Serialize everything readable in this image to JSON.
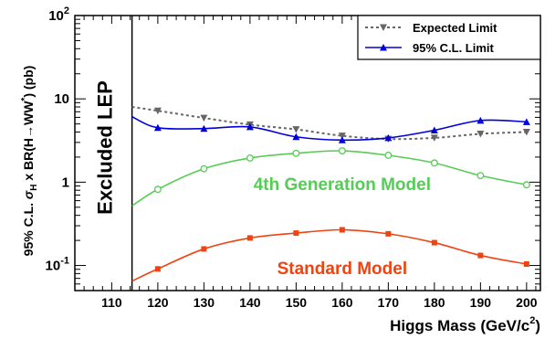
{
  "chart_data": {
    "type": "line",
    "xlabel": "Higgs Mass (GeV/c",
    "xlabel_sup": "2",
    "xlabel_close": ")",
    "ylabel_prefix": "95% C.L. ",
    "ylabel_sigma": "σ",
    "ylabel_sub": "H",
    "ylabel_mid": " x BR(H→WW",
    "ylabel_sup": "*",
    "ylabel_suffix": ") (pb)",
    "xlim": [
      102,
      203
    ],
    "ylim": [
      0.05,
      100
    ],
    "yscale": "log",
    "x_ticks": [
      110,
      120,
      130,
      140,
      150,
      160,
      170,
      180,
      190,
      200
    ],
    "x_tick_labels": [
      "110",
      "120",
      "130",
      "140",
      "150",
      "160",
      "170",
      "180",
      "190",
      "200"
    ],
    "y_tick_labels": [
      {
        "value": 100,
        "base": "10",
        "exp": "2"
      },
      {
        "value": 10,
        "base": "10",
        "exp": ""
      },
      {
        "value": 1,
        "base": "1",
        "exp": ""
      },
      {
        "value": 0.1,
        "base": "10",
        "exp": "-1"
      }
    ],
    "excluded_region": {
      "x_max": 114.4,
      "label": "Excluded LEP"
    },
    "legend": {
      "position": "top-right"
    },
    "series": [
      {
        "name": "Expected Limit",
        "color": "#666666",
        "dash": "dotted",
        "marker": "triangle-down",
        "x": [
          114.4,
          120,
          130,
          140,
          150,
          160,
          170,
          180,
          190,
          200
        ],
        "y": [
          8.0,
          7.2,
          5.9,
          4.9,
          4.3,
          3.6,
          3.3,
          3.4,
          3.8,
          4.0
        ],
        "marker_x": [
          120,
          130,
          140,
          150,
          160,
          170,
          180,
          190,
          200
        ]
      },
      {
        "name": "95% C.L. Limit",
        "color": "#0000dd",
        "dash": "solid",
        "marker": "triangle-up",
        "x": [
          114.4,
          120,
          130,
          140,
          150,
          160,
          170,
          180,
          190,
          200
        ],
        "y": [
          6.1,
          4.5,
          4.4,
          4.6,
          3.5,
          3.2,
          3.4,
          4.2,
          5.5,
          5.3
        ],
        "marker_x": [
          120,
          130,
          140,
          150,
          160,
          170,
          180,
          190,
          200
        ]
      },
      {
        "name": "",
        "model_label": "4th Generation Model",
        "color": "#55cc55",
        "dash": "solid",
        "marker": "open-circle",
        "x": [
          114.4,
          120,
          130,
          140,
          150,
          160,
          170,
          180,
          190,
          200
        ],
        "y": [
          0.52,
          0.82,
          1.45,
          1.95,
          2.22,
          2.38,
          2.1,
          1.7,
          1.2,
          0.93
        ],
        "marker_x": [
          120,
          130,
          140,
          150,
          160,
          170,
          180,
          190,
          200
        ]
      },
      {
        "name": "",
        "model_label": "Standard Model",
        "color": "#ee4411",
        "dash": "solid",
        "marker": "filled-square",
        "x": [
          114.4,
          120,
          130,
          140,
          150,
          160,
          170,
          180,
          190,
          200
        ],
        "y": [
          0.065,
          0.091,
          0.158,
          0.214,
          0.245,
          0.268,
          0.24,
          0.188,
          0.132,
          0.104
        ],
        "marker_x": [
          120,
          130,
          140,
          150,
          160,
          170,
          180,
          190,
          200
        ]
      }
    ]
  }
}
